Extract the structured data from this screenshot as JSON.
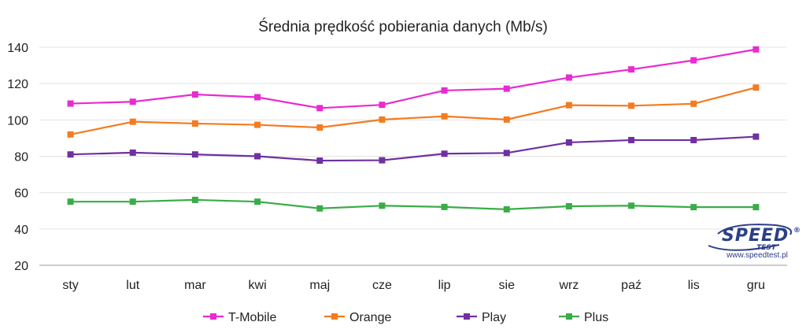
{
  "chart_data": {
    "type": "line",
    "title": "Średnia prędkość pobierania danych (Mb/s)",
    "xlabel": "",
    "ylabel": "",
    "categories": [
      "sty",
      "lut",
      "mar",
      "kwi",
      "maj",
      "cze",
      "lip",
      "sie",
      "wrz",
      "paź",
      "lis",
      "gru"
    ],
    "ylim": [
      20,
      140
    ],
    "yticks": [
      20,
      40,
      60,
      80,
      100,
      120,
      140
    ],
    "grid": true,
    "legend_position": "bottom",
    "series": [
      {
        "name": "T-Mobile",
        "color": "#e82bd0",
        "values": [
          109,
          110,
          114,
          112.5,
          106.5,
          108.3,
          116.2,
          117.2,
          123.3,
          127.8,
          132.8,
          138.8
        ]
      },
      {
        "name": "Orange",
        "color": "#f47b20",
        "values": [
          92,
          99,
          98,
          97.3,
          95.8,
          100.2,
          102,
          100.2,
          108.1,
          107.8,
          108.9,
          117.8
        ]
      },
      {
        "name": "Play",
        "color": "#7030a0",
        "values": [
          81,
          82,
          81,
          80,
          77.6,
          77.8,
          81.4,
          81.8,
          87.6,
          88.9,
          88.9,
          90.8
        ]
      },
      {
        "name": "Plus",
        "color": "#3aac48",
        "values": [
          55,
          55,
          56,
          55,
          51.3,
          52.8,
          52.1,
          50.8,
          52.5,
          52.8,
          52,
          52
        ]
      }
    ]
  },
  "logo": {
    "brand": "SPEED",
    "sub": "TEST",
    "registered": "®",
    "url": "www.speedtest.pl"
  }
}
